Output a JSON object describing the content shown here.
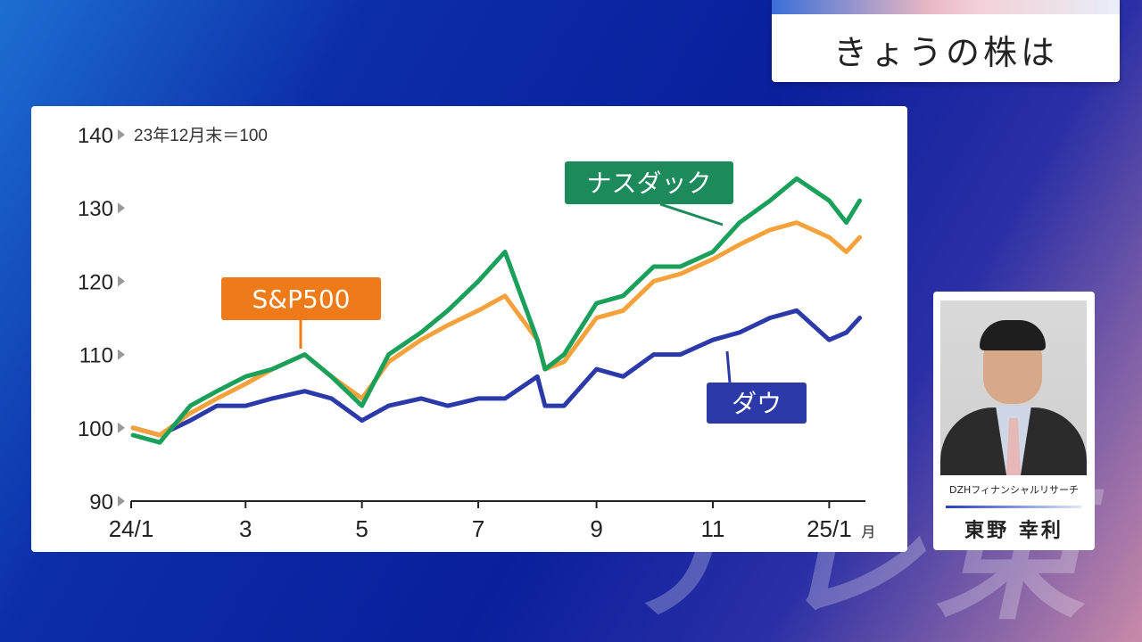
{
  "title": "きょうの株は",
  "watermark": "テレ東",
  "speaker": {
    "company": "DZHフィナンシャルリサーチ",
    "name": "東野 幸利"
  },
  "chart_data": {
    "type": "line",
    "note": "23年12月末＝100",
    "ylim": [
      90,
      140
    ],
    "yticks": [
      "90",
      "100",
      "110",
      "120",
      "130",
      "140"
    ],
    "xticks": [
      "24/1",
      "3",
      "5",
      "7",
      "9",
      "11",
      "25/1"
    ],
    "xtick_suffix": "月",
    "x": [
      "24/1/2",
      "24/1/16",
      "24/2/1",
      "24/2/15",
      "24/3/1",
      "24/3/15",
      "24/4/1",
      "24/4/15",
      "24/5/1",
      "24/5/15",
      "24/6/1",
      "24/6/15",
      "24/7/1",
      "24/7/15",
      "24/8/1",
      "24/8/5",
      "24/8/15",
      "24/9/1",
      "24/9/15",
      "24/10/1",
      "24/10/15",
      "24/11/1",
      "24/11/15",
      "24/12/1",
      "24/12/15",
      "25/1/1",
      "25/1/10",
      "25/1/17"
    ],
    "series": [
      {
        "name": "ダウ",
        "color": "#2b3aa8",
        "values": [
          100,
          99,
          101,
          103,
          103,
          104,
          105,
          104,
          101,
          103,
          104,
          103,
          104,
          104,
          107,
          103,
          103,
          108,
          107,
          110,
          110,
          112,
          113,
          115,
          116,
          112,
          113,
          115
        ]
      },
      {
        "name": "S&P500",
        "color": "#f5a23c",
        "values": [
          100,
          99,
          102,
          104,
          106,
          108,
          110,
          107,
          104,
          109,
          112,
          114,
          116,
          118,
          112,
          108,
          109,
          115,
          116,
          120,
          121,
          123,
          125,
          127,
          128,
          126,
          124,
          126
        ]
      },
      {
        "name": "ナスダック",
        "color": "#1aa05a",
        "values": [
          99,
          98,
          103,
          105,
          107,
          108,
          110,
          107,
          103,
          110,
          113,
          116,
          120,
          124,
          112,
          108,
          110,
          117,
          118,
          122,
          122,
          124,
          128,
          131,
          134,
          131,
          128,
          131
        ]
      }
    ],
    "labels": {
      "nasdaq": {
        "text": "ナスダック",
        "color": "#1d8a5c"
      },
      "sp500": {
        "text": "S&P500",
        "color": "#ef7a1a"
      },
      "dow": {
        "text": "ダウ",
        "color": "#2b3aa8"
      }
    }
  }
}
